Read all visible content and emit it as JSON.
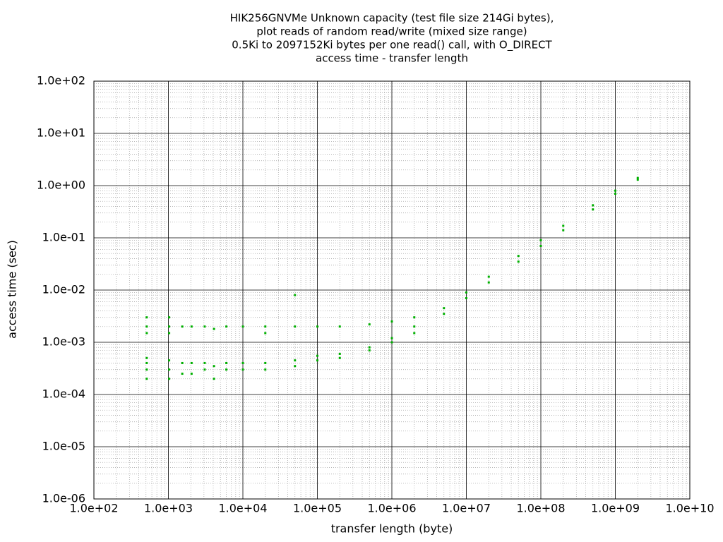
{
  "chart_data": {
    "type": "scatter",
    "title": [
      "HIK256GNVMe Unknown capacity (test file size 214Gi bytes),",
      "plot reads of random read/write (mixed size range)",
      "0.5Ki to 2097152Ki bytes per one read() call, with O_DIRECT",
      "access time - transfer length"
    ],
    "x_label": "transfer length (byte)",
    "y_label": "access time (sec)",
    "x_log": true,
    "y_log": true,
    "grid": true,
    "color": "#00b000",
    "xlim": [
      100,
      10000000000
    ],
    "ylim": [
      1e-06,
      100
    ],
    "xticks": [
      {
        "value": 100,
        "label": "1.0e+02"
      },
      {
        "value": 1000,
        "label": "1.0e+03"
      },
      {
        "value": 10000,
        "label": "1.0e+04"
      },
      {
        "value": 100000,
        "label": "1.0e+05"
      },
      {
        "value": 1000000,
        "label": "1.0e+06"
      },
      {
        "value": 10000000,
        "label": "1.0e+07"
      },
      {
        "value": 100000000,
        "label": "1.0e+08"
      },
      {
        "value": 1000000000,
        "label": "1.0e+09"
      },
      {
        "value": 10000000000,
        "label": "1.0e+10"
      }
    ],
    "yticks": [
      {
        "value": 1e-06,
        "label": "1.0e-06"
      },
      {
        "value": 1e-05,
        "label": "1.0e-05"
      },
      {
        "value": 0.0001,
        "label": "1.0e-04"
      },
      {
        "value": 0.001,
        "label": "1.0e-03"
      },
      {
        "value": 0.01,
        "label": "1.0e-02"
      },
      {
        "value": 0.1,
        "label": "1.0e-01"
      },
      {
        "value": 1,
        "label": "1.0e+00"
      },
      {
        "value": 10,
        "label": "1.0e+01"
      },
      {
        "value": 100,
        "label": "1.0e+02"
      }
    ],
    "x": [
      512,
      512,
      512,
      512,
      512,
      512,
      512,
      1024,
      1024,
      1024,
      1024,
      1024,
      1024,
      1536,
      1536,
      1536,
      2048,
      2048,
      2048,
      3072,
      3072,
      3072,
      4096,
      4096,
      4096,
      6000,
      6000,
      6000,
      10000,
      10000,
      10000,
      20000,
      20000,
      20000,
      20000,
      50000,
      50000,
      50000,
      50000,
      100000,
      100000,
      100000,
      200000,
      200000,
      200000,
      500000,
      500000,
      500000,
      1000000,
      1000000,
      1000000,
      2000000,
      2000000,
      2000000,
      5000000,
      5000000,
      10000000,
      10000000,
      20000000,
      20000000,
      50000000,
      50000000,
      100000000,
      100000000,
      200000000,
      200000000,
      500000000,
      500000000,
      1000000000,
      1000000000,
      2000000000,
      2000000000
    ],
    "values": [
      0.0002,
      0.0003,
      0.0004,
      0.0005,
      0.0015,
      0.002,
      0.003,
      0.0002,
      0.0003,
      0.00045,
      0.0015,
      0.002,
      0.003,
      0.00025,
      0.0004,
      0.002,
      0.00025,
      0.0004,
      0.002,
      0.0003,
      0.0004,
      0.002,
      0.0002,
      0.00035,
      0.0018,
      0.0003,
      0.0004,
      0.002,
      0.0003,
      0.0004,
      0.002,
      0.0003,
      0.0004,
      0.002,
      0.0015,
      0.00035,
      0.00045,
      0.002,
      0.008,
      0.00045,
      0.00055,
      0.002,
      0.0005,
      0.0006,
      0.002,
      0.0007,
      0.0008,
      0.0022,
      0.001,
      0.0012,
      0.0025,
      0.0015,
      0.002,
      0.003,
      0.0035,
      0.0045,
      0.007,
      0.009,
      0.014,
      0.018,
      0.035,
      0.045,
      0.07,
      0.09,
      0.14,
      0.17,
      0.35,
      0.42,
      0.7,
      0.8,
      1.3,
      1.4
    ]
  }
}
